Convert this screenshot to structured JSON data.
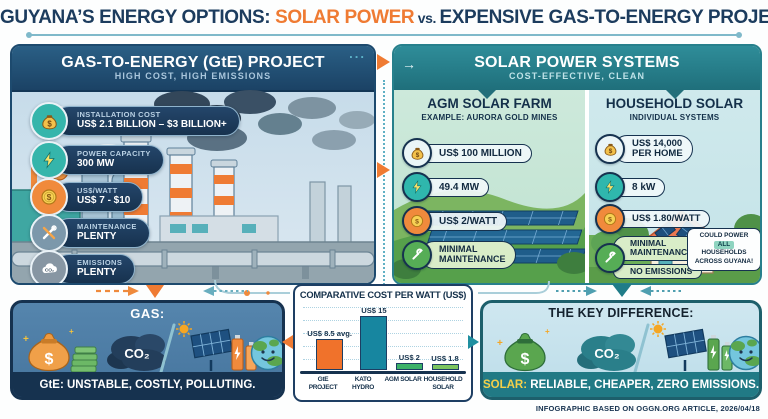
{
  "title": {
    "part1": "GUYANA’S ENERGY OPTIONS: ",
    "highlight": "SOLAR POWER",
    "part2": " vs. ",
    "part3": "EXPENSIVE GAS-TO-ENERGY PROJECT"
  },
  "colors": {
    "navy": "#16324f",
    "orange": "#ef7b33",
    "teal": "#27808c",
    "green": "#3cb06a",
    "sky": "#c2d9e8",
    "yellow": "#f5d049"
  },
  "gte_panel": {
    "title": "GAS-TO-ENERGY (GtE) PROJECT",
    "subtitle": "HIGH COST, HIGH EMISSIONS",
    "ellipsis": "...",
    "stats": [
      {
        "icon": "money-bag",
        "label": "INSTALLATION COST",
        "value": "US$ 2.1 BILLION – $3 BILLION+"
      },
      {
        "icon": "lightning",
        "label": "POWER CAPACITY",
        "value": "300 MW"
      },
      {
        "icon": "dollar-coin",
        "label": "US$/WATT",
        "value": "US$ 7 - $10"
      },
      {
        "icon": "tools",
        "label": "MAINTENANCE",
        "value": "PLENTY"
      },
      {
        "icon": "emissions-cloud",
        "label": "EMISSIONS",
        "value": "PLENTY"
      }
    ]
  },
  "solar_panel": {
    "title": "SOLAR POWER SYSTEMS",
    "subtitle": "COST-EFFECTIVE, CLEAN",
    "header_arrow": "→",
    "agm": {
      "title": "AGM SOLAR FARM",
      "subtitle": "EXAMPLE: AURORA GOLD MINES",
      "stats": [
        {
          "icon": "money-bag",
          "value": "US$ 100 MILLION"
        },
        {
          "icon": "lightning",
          "value": "49.4 MW"
        },
        {
          "icon": "dollar-coin",
          "value": "US$ 2/WATT"
        },
        {
          "icon": "wrench",
          "value": "MINIMAL\nMAINTENANCE"
        }
      ]
    },
    "household": {
      "title": "HOUSEHOLD SOLAR",
      "subtitle": "INDIVIDUAL SYSTEMS",
      "stats": [
        {
          "icon": "money-bag",
          "value": "US$ 14,000\nPER HOME"
        },
        {
          "icon": "lightning",
          "value": "8 kW"
        },
        {
          "icon": "dollar-coin",
          "value": "US$ 1.80/WATT"
        }
      ],
      "maintenance": {
        "icon": "wrench",
        "line1": "MINIMAL\nMAINTENANCE",
        "line2": "NO EMISSIONS"
      },
      "bubble": {
        "line1": "COULD POWER",
        "highlight": "ALL",
        "line2": "HOUSEHOLDS",
        "line3": "ACROSS GUYANA!"
      }
    }
  },
  "gas_summary": {
    "title": "GAS:",
    "co2_label": "CO₂",
    "caption": "GtE: UNSTABLE, COSTLY, POLLUTING."
  },
  "key_difference": {
    "title": "THE KEY DIFFERENCE:",
    "co2_label": "CO₂",
    "caption_highlight": "SOLAR:",
    "caption_rest": " RELIABLE, CHEAPER, ZERO EMISSIONS."
  },
  "chart_data": {
    "type": "bar",
    "title": "COMPARATIVE COST PER WATT (US$)",
    "categories": [
      "GtE PROJECT",
      "KATO HYDRO",
      "AGM SOLAR",
      "HOUSEHOLD SOLAR"
    ],
    "values": [
      8.5,
      15,
      2,
      1.8
    ],
    "bar_labels": [
      "US$ 8.5 avg.",
      "US$ 15",
      "US$ 2",
      "US$ 1.8"
    ],
    "colors": [
      "#f0722b",
      "#1786a0",
      "#3cb269",
      "#7cc45e"
    ],
    "ylim": [
      0,
      16
    ],
    "grid": "dotted-horizontal",
    "legend": false
  },
  "footer": "INFOGRAPHIC BASED ON OGGN.ORG ARTICLE, 2026/04/18"
}
